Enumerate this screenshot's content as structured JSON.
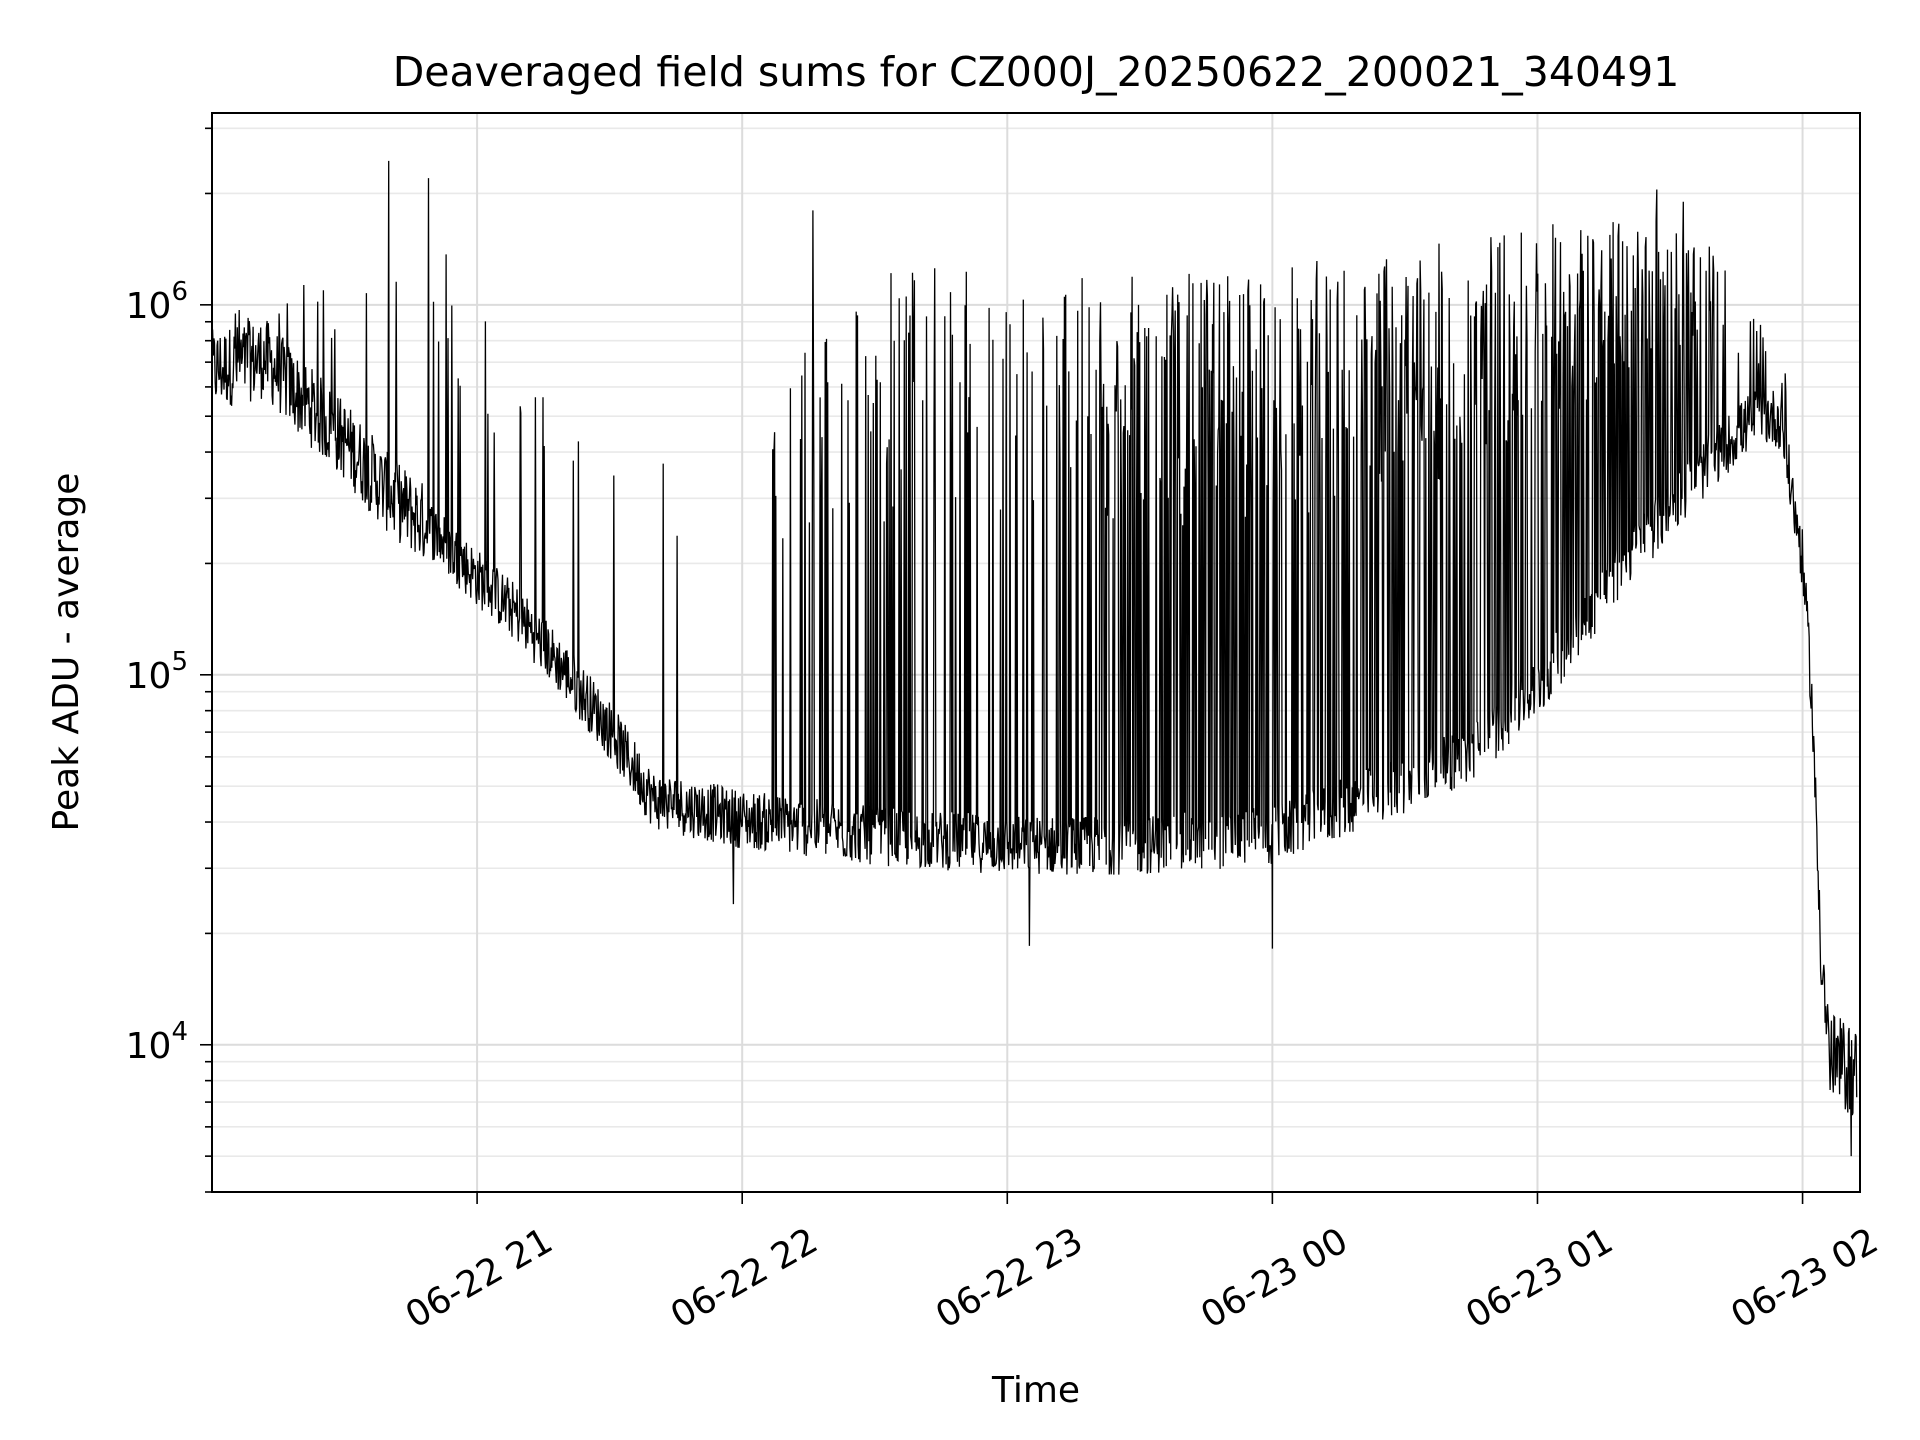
{
  "chart_data": {
    "type": "line",
    "title": "Deaveraged field sums for CZ000J_20250622_200021_340491",
    "xlabel": "Time",
    "ylabel": "Peak ADU - average",
    "yscale": "log",
    "xlim": [
      "2025-06-22 20:00",
      "2025-06-23 02:13"
    ],
    "ylim": [
      4000,
      3300000
    ],
    "grid": true,
    "legend": "none",
    "line_color": "#000000",
    "x_ticks": [
      {
        "label": "06-22 21",
        "value": "2025-06-22 21:00"
      },
      {
        "label": "06-22 22",
        "value": "2025-06-22 22:00"
      },
      {
        "label": "06-22 23",
        "value": "2025-06-22 23:00"
      },
      {
        "label": "06-23 00",
        "value": "2025-06-23 00:00"
      },
      {
        "label": "06-23 01",
        "value": "2025-06-23 01:00"
      },
      {
        "label": "06-23 02",
        "value": "2025-06-23 02:00"
      }
    ],
    "y_ticks": [
      {
        "base": "10",
        "exp": "4",
        "value": 10000
      },
      {
        "base": "10",
        "exp": "5",
        "value": 100000
      },
      {
        "base": "10",
        "exp": "6",
        "value": 1000000
      }
    ],
    "series": [
      {
        "baseline": {
          "x": [
            "2025-06-22 20:00",
            "2025-06-22 20:12",
            "2025-06-22 20:20",
            "2025-06-22 20:30",
            "2025-06-22 20:40",
            "2025-06-22 20:50",
            "2025-06-22 21:00",
            "2025-06-22 21:10",
            "2025-06-22 21:20",
            "2025-06-22 21:30",
            "2025-06-22 21:40",
            "2025-06-22 22:00",
            "2025-06-22 22:30",
            "2025-06-22 23:00",
            "2025-06-22 23:30",
            "2025-06-23 00:00",
            "2025-06-23 00:30",
            "2025-06-23 00:45",
            "2025-06-23 01:00",
            "2025-06-23 01:20",
            "2025-06-23 01:40",
            "2025-06-23 01:50",
            "2025-06-23 01:55",
            "2025-06-23 02:00",
            "2025-06-23 02:02",
            "2025-06-23 02:04",
            "2025-06-23 02:06",
            "2025-06-23 02:13"
          ],
          "y": [
            650000,
            700000,
            550000,
            420000,
            300000,
            240000,
            180000,
            140000,
            100000,
            70000,
            45000,
            40000,
            36000,
            34000,
            34000,
            36000,
            50000,
            60000,
            90000,
            200000,
            380000,
            500000,
            480000,
            200000,
            90000,
            20000,
            9000,
            8000
          ]
        },
        "spike_peaks": {
          "x": [
            "2025-06-22 20:00",
            "2025-06-22 20:30",
            "2025-06-22 20:40",
            "2025-06-22 20:48",
            "2025-06-22 21:00",
            "2025-06-22 21:10",
            "2025-06-22 21:20",
            "2025-06-22 21:30",
            "2025-06-22 21:40",
            "2025-06-22 22:00",
            "2025-06-22 22:15",
            "2025-06-22 22:30",
            "2025-06-22 22:45",
            "2025-06-22 23:00",
            "2025-06-22 23:30",
            "2025-06-23 00:00",
            "2025-06-23 00:30",
            "2025-06-23 01:00",
            "2025-06-23 01:20",
            "2025-06-23 01:30",
            "2025-06-23 01:40",
            "2025-06-23 01:50",
            "2025-06-23 02:00"
          ],
          "y": [
            1000000,
            1200000,
            2300000,
            1700000,
            1200000,
            700000,
            500000,
            900000,
            1000000,
            700000,
            900000,
            1300000,
            1300000,
            1200000,
            1200000,
            1300000,
            1400000,
            1700000,
            1700000,
            1800000,
            1400000,
            900000,
            600000
          ]
        },
        "extremes": [
          {
            "x": "2025-06-22 20:40",
            "y": 2450000
          },
          {
            "x": "2025-06-22 20:49",
            "y": 2200000
          },
          {
            "x": "2025-06-22 22:16",
            "y": 1800000
          },
          {
            "x": "2025-06-23 01:27",
            "y": 2050000
          },
          {
            "x": "2025-06-23 01:33",
            "y": 1900000
          },
          {
            "x": "2025-06-22 21:58",
            "y": 24000
          },
          {
            "x": "2025-06-22 23:05",
            "y": 18500
          },
          {
            "x": "2025-06-23 00:00",
            "y": 18200
          },
          {
            "x": "2025-06-23 02:11",
            "y": 5000
          }
        ]
      }
    ]
  }
}
